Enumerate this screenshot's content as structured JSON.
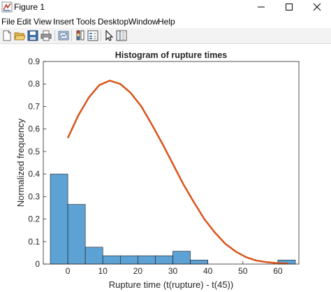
{
  "window": {
    "title": "Figure 1",
    "icon": "matlab-figure-icon",
    "controls": [
      "minimize-icon",
      "maximize-icon",
      "close-icon"
    ]
  },
  "menu": {
    "items": [
      {
        "label": "File"
      },
      {
        "label": "Edit"
      },
      {
        "label": "View"
      },
      {
        "label": "Insert"
      },
      {
        "label": "Tools"
      },
      {
        "label": "Desktop"
      },
      {
        "label": "Window"
      },
      {
        "label": "Help"
      }
    ]
  },
  "toolbar": {
    "buttons": [
      "new-figure-icon",
      "open-file-icon",
      "save-icon",
      "print-icon",
      "link-plot-icon",
      "insert-colorbar-icon",
      "insert-legend-icon",
      "edit-plot-icon",
      "property-editor-icon"
    ]
  },
  "chart_data": {
    "type": "bar",
    "title": "Histogram of rupture times",
    "xlabel": "Rupture time (t(rupture) - t(45))",
    "ylabel": "Normalized frequency",
    "xlim": [
      -7,
      66
    ],
    "ylim": [
      0,
      0.9
    ],
    "xticks": [
      "0",
      "10",
      "20",
      "30",
      "40",
      "50",
      "60"
    ],
    "yticks": [
      "0",
      "0.1",
      "0.2",
      "0.3",
      "0.4",
      "0.5",
      "0.6",
      "0.7",
      "0.8",
      "0.9"
    ],
    "grid": false,
    "bin_edges": [
      -5,
      0,
      5,
      10,
      15,
      20,
      25,
      30,
      35,
      40,
      45,
      50,
      55,
      60,
      65
    ],
    "values": [
      0.4,
      0.265,
      0.075,
      0.037,
      0.037,
      0.037,
      0.037,
      0.057,
      0.018,
      0,
      0,
      0,
      0,
      0.018
    ],
    "bar_color": "#5da2d5",
    "series": [
      {
        "type": "line",
        "color": "#d95319",
        "x": [
          0,
          3,
          6,
          9,
          12,
          15,
          18,
          21,
          24,
          27,
          30,
          33,
          36,
          39,
          42,
          45,
          48,
          51,
          54,
          57,
          60,
          63
        ],
        "y": [
          0.56,
          0.66,
          0.74,
          0.795,
          0.815,
          0.8,
          0.76,
          0.7,
          0.62,
          0.535,
          0.445,
          0.355,
          0.275,
          0.2,
          0.14,
          0.09,
          0.055,
          0.03,
          0.015,
          0.008,
          0.004,
          0.002
        ]
      }
    ]
  }
}
